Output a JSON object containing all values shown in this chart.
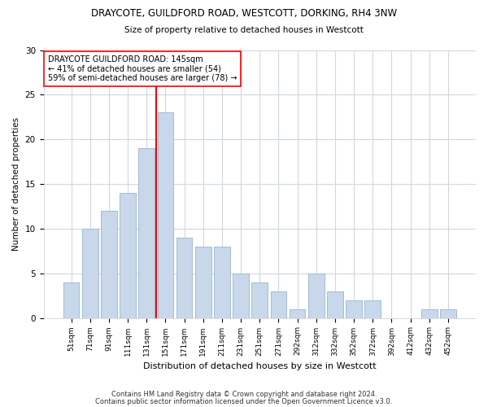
{
  "title1": "DRAYCOTE, GUILDFORD ROAD, WESTCOTT, DORKING, RH4 3NW",
  "title2": "Size of property relative to detached houses in Westcott",
  "xlabel": "Distribution of detached houses by size in Westcott",
  "ylabel": "Number of detached properties",
  "categories": [
    "51sqm",
    "71sqm",
    "91sqm",
    "111sqm",
    "131sqm",
    "151sqm",
    "171sqm",
    "191sqm",
    "211sqm",
    "231sqm",
    "251sqm",
    "271sqm",
    "292sqm",
    "312sqm",
    "332sqm",
    "352sqm",
    "372sqm",
    "392sqm",
    "412sqm",
    "432sqm",
    "452sqm"
  ],
  "values": [
    4,
    10,
    12,
    14,
    19,
    23,
    9,
    8,
    8,
    5,
    4,
    3,
    1,
    5,
    3,
    2,
    2,
    0,
    0,
    1,
    1
  ],
  "bar_color": "#c8d8ea",
  "bar_edge_color": "#a0bcd4",
  "ref_line_x": 4.5,
  "ref_line_color": "red",
  "annotation_text": "DRAYCOTE GUILDFORD ROAD: 145sqm\n← 41% of detached houses are smaller (54)\n59% of semi-detached houses are larger (78) →",
  "annotation_box_color": "white",
  "annotation_box_edge_color": "red",
  "ylim": [
    0,
    30
  ],
  "yticks": [
    0,
    5,
    10,
    15,
    20,
    25,
    30
  ],
  "footer1": "Contains HM Land Registry data © Crown copyright and database right 2024.",
  "footer2": "Contains public sector information licensed under the Open Government Licence v3.0.",
  "bg_color": "#ffffff",
  "plot_bg_color": "#ffffff",
  "grid_color": "#d0d8e0"
}
